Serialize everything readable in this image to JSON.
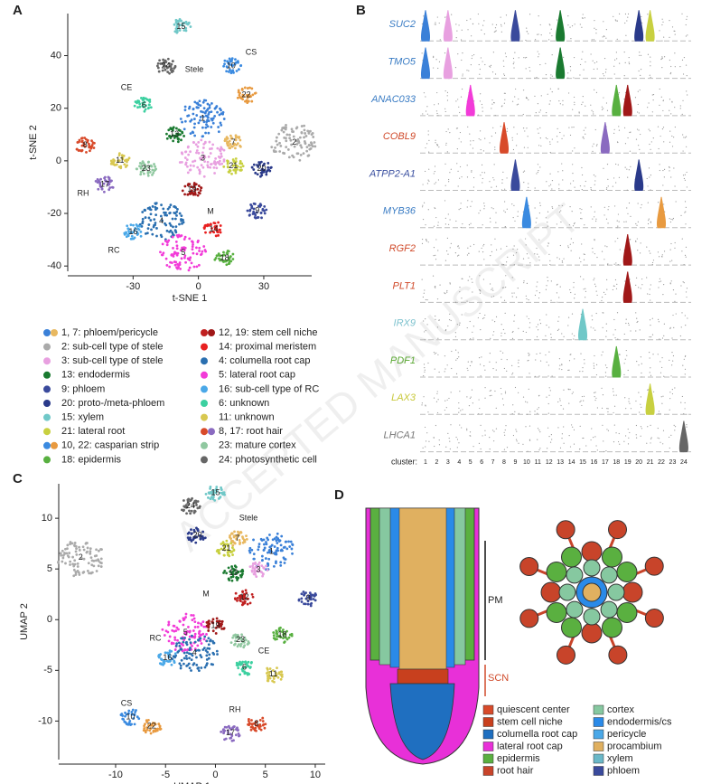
{
  "panels": [
    "A",
    "B",
    "C",
    "D"
  ],
  "watermark": "ACCEPTED MANUSCRIPT",
  "cluster_colors": [
    "#3a80d8",
    "#aaaaaa",
    "#e8a0e0",
    "#2a6fb0",
    "#f23bd8",
    "#3cd0a0",
    "#e8b860",
    "#d84a2a",
    "#3a4a9c",
    "#3a8ae0",
    "#d8c850",
    "#c02020",
    "#1a7a30",
    "#e82020",
    "#70c8c8",
    "#4aa8e8",
    "#8a6ac0",
    "#58b040",
    "#a01818",
    "#2a3a8a",
    "#c8d040",
    "#e89a40",
    "#90c8a0",
    "#666666"
  ],
  "tsne": {
    "xlabel": "t-SNE 1",
    "ylabel": "t-SNE 2",
    "xlim": [
      -60,
      52
    ],
    "ylim": [
      -42,
      56
    ],
    "xticks": [
      -30,
      0,
      30
    ],
    "yticks": [
      -40,
      -20,
      0,
      20,
      40
    ],
    "regions": [
      "CS",
      "Stele",
      "CE",
      "RH",
      "RC",
      "M"
    ],
    "clusters": [
      {
        "label": "15",
        "x": -8,
        "y": 51
      },
      {
        "label": "24",
        "x": -15,
        "y": 36
      },
      {
        "label": "10",
        "x": 15,
        "y": 36
      },
      {
        "label": "22",
        "x": 22,
        "y": 25
      },
      {
        "label": "1",
        "x": 2,
        "y": 16
      },
      {
        "label": "7",
        "x": 16,
        "y": 7
      },
      {
        "label": "6",
        "x": -25,
        "y": 21
      },
      {
        "label": "3",
        "x": 2,
        "y": 1
      },
      {
        "label": "13",
        "x": -11,
        "y": 10
      },
      {
        "label": "2",
        "x": 44,
        "y": 7
      },
      {
        "label": "8",
        "x": -52,
        "y": 6
      },
      {
        "label": "11",
        "x": -36,
        "y": 0
      },
      {
        "label": "17",
        "x": -43,
        "y": -9
      },
      {
        "label": "23",
        "x": -24,
        "y": -3
      },
      {
        "label": "21",
        "x": 16,
        "y": -2
      },
      {
        "label": "20",
        "x": 29,
        "y": -3
      },
      {
        "label": "19",
        "x": -3,
        "y": -11
      },
      {
        "label": "9",
        "x": 27,
        "y": -19
      },
      {
        "label": "4",
        "x": -17,
        "y": -23
      },
      {
        "label": "16",
        "x": -30,
        "y": -27
      },
      {
        "label": "5",
        "x": -7,
        "y": -35
      },
      {
        "label": "14",
        "x": 7,
        "y": -26
      },
      {
        "label": "18",
        "x": 12,
        "y": -37
      }
    ]
  },
  "umap": {
    "xlabel": "UMAP 1",
    "ylabel": "UMAP 2",
    "xlim": [
      -15.7,
      11
    ],
    "ylim": [
      -13.8,
      13.4
    ],
    "xticks": [
      -10,
      -5,
      0,
      5,
      10
    ],
    "yticks": [
      -10,
      -5,
      0,
      5,
      10
    ],
    "regions": [
      "Stele",
      "M",
      "RC",
      "CE",
      "CS",
      "RH"
    ],
    "clusters": [
      {
        "label": "2",
        "x": -13.5,
        "y": 6.1
      },
      {
        "label": "24",
        "x": -2.5,
        "y": 11.2
      },
      {
        "label": "15",
        "x": 0,
        "y": 12.5
      },
      {
        "label": "20",
        "x": -1.8,
        "y": 8.3
      },
      {
        "label": "7",
        "x": 2.2,
        "y": 8
      },
      {
        "label": "1",
        "x": 5.6,
        "y": 6.7
      },
      {
        "label": "21",
        "x": 1.1,
        "y": 7
      },
      {
        "label": "13",
        "x": 1.8,
        "y": 4.6
      },
      {
        "label": "3",
        "x": 4.3,
        "y": 4.9
      },
      {
        "label": "12",
        "x": 2.9,
        "y": 2.2
      },
      {
        "label": "9",
        "x": 9.3,
        "y": 2.1
      },
      {
        "label": "5",
        "x": -3,
        "y": -1.3
      },
      {
        "label": "19",
        "x": 0,
        "y": -0.6
      },
      {
        "label": "4",
        "x": -2.1,
        "y": -3.3
      },
      {
        "label": "16",
        "x": -4.8,
        "y": -3.8
      },
      {
        "label": "23",
        "x": 2.5,
        "y": -2
      },
      {
        "label": "18",
        "x": 6.7,
        "y": -1.5
      },
      {
        "label": "6",
        "x": 2.9,
        "y": -4.7
      },
      {
        "label": "11",
        "x": 5.8,
        "y": -5.4
      },
      {
        "label": "10",
        "x": -8.5,
        "y": -9.6
      },
      {
        "label": "22",
        "x": -6.4,
        "y": -10.5
      },
      {
        "label": "8",
        "x": 4.1,
        "y": -10.3
      },
      {
        "label": "17",
        "x": 1.5,
        "y": -11.2
      }
    ]
  },
  "legend": [
    {
      "label": "1, 7: phloem/pericycle",
      "clusters": [
        1,
        7
      ]
    },
    {
      "label": "2: sub-cell type of stele",
      "clusters": [
        2
      ]
    },
    {
      "label": "3: sub-cell type of stele",
      "clusters": [
        3
      ]
    },
    {
      "label": "13: endodermis",
      "clusters": [
        13
      ]
    },
    {
      "label": "9: phloem",
      "clusters": [
        9
      ]
    },
    {
      "label": "20: proto-/meta-phloem",
      "clusters": [
        20
      ]
    },
    {
      "label": "15: xylem",
      "clusters": [
        15
      ]
    },
    {
      "label": "21: lateral root",
      "clusters": [
        21
      ]
    },
    {
      "label": "10,  22: casparian strip",
      "clusters": [
        10,
        22
      ]
    },
    {
      "label": "18: epidermis",
      "clusters": [
        18
      ]
    },
    {
      "label": "12, 19: stem cell niche",
      "clusters": [
        12,
        19
      ]
    },
    {
      "label": "14: proximal meristem",
      "clusters": [
        14
      ]
    },
    {
      "label": "4: columella root cap",
      "clusters": [
        4
      ]
    },
    {
      "label": "5: lateral root cap",
      "clusters": [
        5
      ]
    },
    {
      "label": "16: sub-cell type of RC",
      "clusters": [
        16
      ]
    },
    {
      "label": "6: unknown",
      "clusters": [
        6
      ]
    },
    {
      "label": "11: unknown",
      "clusters": [
        11
      ]
    },
    {
      "label": "8, 17: root hair",
      "clusters": [
        8,
        17
      ]
    },
    {
      "label": "23: mature cortex",
      "clusters": [
        23
      ]
    },
    {
      "label": "24: photosynthetic cell",
      "clusters": [
        24
      ]
    }
  ],
  "violin": {
    "axis_label": "cluster:",
    "cluster_labels": [
      "1",
      "2",
      "3",
      "4",
      "5",
      "6",
      "7",
      "8",
      "9",
      "10",
      "11",
      "12",
      "13",
      "14",
      "15",
      "16",
      "17",
      "18",
      "19",
      "20",
      "21",
      "22",
      "23",
      "24"
    ],
    "genes": [
      {
        "name": "SUC2",
        "color": "#3a7cc4",
        "clusters": [
          1,
          3,
          9,
          13,
          20,
          21
        ]
      },
      {
        "name": "TMO5",
        "color": "#3a7cc4",
        "clusters": [
          1,
          3,
          13
        ]
      },
      {
        "name": "ANAC033",
        "color": "#3a7cc4",
        "clusters": [
          5,
          18,
          19
        ]
      },
      {
        "name": "COBL9",
        "color": "#d04a2a",
        "clusters": [
          8,
          17
        ]
      },
      {
        "name": "ATPP2-A1",
        "color": "#3a4fa0",
        "clusters": [
          9,
          20
        ]
      },
      {
        "name": "MYB36",
        "color": "#3a7cc4",
        "clusters": [
          10,
          22
        ]
      },
      {
        "name": "RGF2",
        "color": "#d04a2a",
        "clusters": [
          19
        ]
      },
      {
        "name": "PLT1",
        "color": "#d04a2a",
        "clusters": [
          19
        ]
      },
      {
        "name": "IRX9",
        "color": "#7fc3cf",
        "clusters": [
          15
        ]
      },
      {
        "name": "PDF1",
        "color": "#5aa832",
        "clusters": [
          18
        ]
      },
      {
        "name": "LAX3",
        "color": "#c8c83a",
        "clusters": [
          21
        ]
      },
      {
        "name": "LHCA1",
        "color": "#777777",
        "clusters": [
          24
        ]
      }
    ]
  },
  "diagram": {
    "zones": [
      "PM",
      "SCN"
    ],
    "legend": [
      {
        "label": "quiescent center",
        "color": "#d84a2a"
      },
      {
        "label": "stem cell niche",
        "color": "#c8401e"
      },
      {
        "label": "columella root cap",
        "color": "#1f6fc0"
      },
      {
        "label": "lateral root cap",
        "color": "#e830d8"
      },
      {
        "label": "epidermis",
        "color": "#5ab040"
      },
      {
        "label": "root hair",
        "color": "#c8442a"
      },
      {
        "label": "cortex",
        "color": "#86c8a0"
      },
      {
        "label": "endodermis/cs",
        "color": "#2a8ae8"
      },
      {
        "label": "pericycle",
        "color": "#4aa8e8"
      },
      {
        "label": "procambium",
        "color": "#e0b060"
      },
      {
        "label": "xylem",
        "color": "#6ab8c8"
      },
      {
        "label": "phloem",
        "color": "#3a4a9c"
      }
    ]
  }
}
